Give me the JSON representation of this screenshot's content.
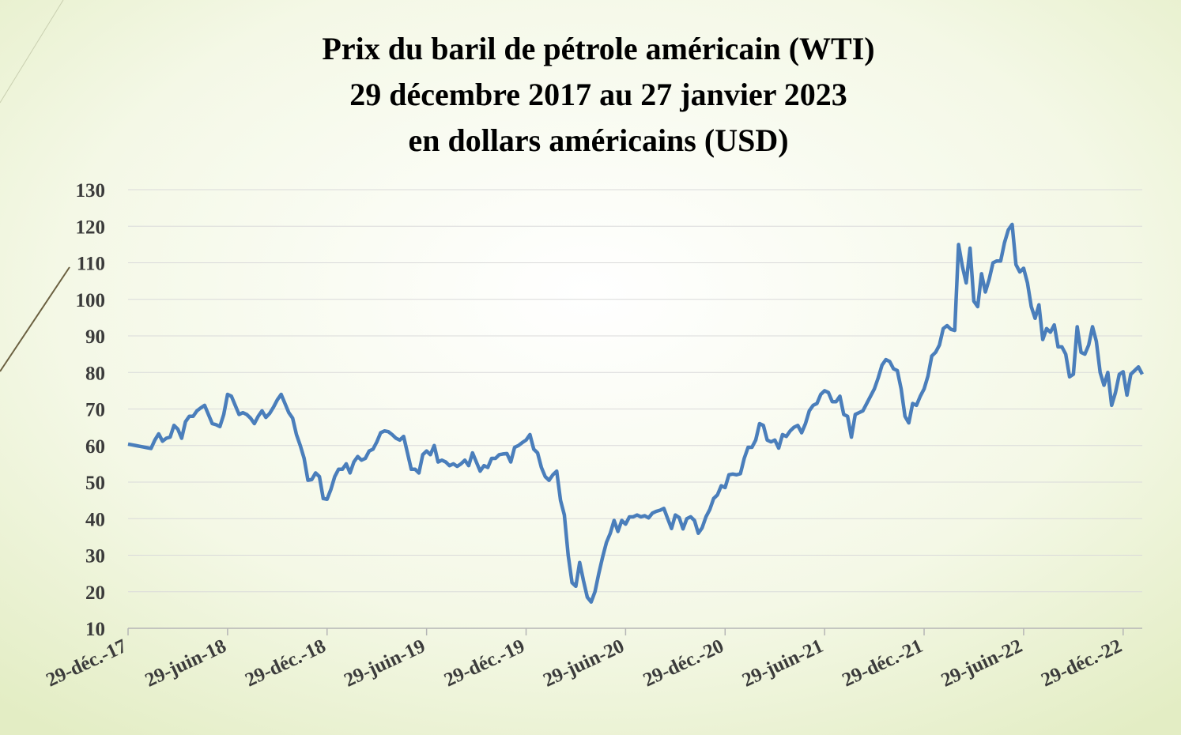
{
  "chart_data": {
    "type": "line",
    "title_lines": [
      "Prix du baril de pétrole américain (WTI)",
      "29 décembre 2017 au 27 janvier 2023",
      "en dollars américains (USD)"
    ],
    "categories": [
      "29-déc.-17",
      null,
      null,
      null,
      null,
      null,
      null,
      null,
      null,
      null,
      null,
      null,
      null,
      null,
      null,
      null,
      null,
      null,
      null,
      null,
      null,
      null,
      null,
      null,
      null,
      null,
      "29-juin-18",
      null,
      null,
      null,
      null,
      null,
      null,
      null,
      null,
      null,
      null,
      null,
      null,
      null,
      null,
      null,
      null,
      null,
      null,
      null,
      null,
      null,
      null,
      null,
      null,
      null,
      "29-déc.-18",
      null,
      null,
      null,
      null,
      null,
      null,
      null,
      null,
      null,
      null,
      null,
      null,
      null,
      null,
      null,
      null,
      null,
      null,
      null,
      null,
      null,
      null,
      null,
      null,
      null,
      "29-juin-19",
      null,
      null,
      null,
      null,
      null,
      null,
      null,
      null,
      null,
      null,
      null,
      null,
      null,
      null,
      null,
      null,
      null,
      null,
      null,
      null,
      null,
      null,
      null,
      null,
      null,
      "29-déc.-19",
      null,
      null,
      null,
      null,
      null,
      null,
      null,
      null,
      null,
      null,
      null,
      null,
      null,
      null,
      null,
      null,
      null,
      null,
      null,
      null,
      null,
      null,
      null,
      null,
      null,
      "29-juin-20",
      null,
      null,
      null,
      null,
      null,
      null,
      null,
      null,
      null,
      null,
      null,
      null,
      null,
      null,
      null,
      null,
      null,
      null,
      null,
      null,
      null,
      null,
      null,
      null,
      null,
      "29-déc.-20",
      null,
      null,
      null,
      null,
      null,
      null,
      null,
      null,
      null,
      null,
      null,
      null,
      null,
      null,
      null,
      null,
      null,
      null,
      null,
      null,
      null,
      null,
      null,
      null,
      null,
      "29-juin-21",
      null,
      null,
      null,
      null,
      null,
      null,
      null,
      null,
      null,
      null,
      null,
      null,
      null,
      null,
      null,
      null,
      null,
      null,
      null,
      null,
      null,
      null,
      null,
      null,
      null,
      "29-déc.-21",
      null,
      null,
      null,
      null,
      null,
      null,
      null,
      null,
      null,
      null,
      null,
      null,
      null,
      null,
      null,
      null,
      null,
      null,
      null,
      null,
      null,
      null,
      null,
      null,
      null,
      "29-juin-22",
      null,
      null,
      null,
      null,
      null,
      null,
      null,
      null,
      null,
      null,
      null,
      null,
      null,
      null,
      null,
      null,
      null,
      null,
      null,
      null,
      null,
      null,
      null,
      null,
      null,
      "29-déc.-22",
      null,
      null,
      null,
      null,
      null
    ],
    "series": [
      {
        "name": "WTI",
        "color": "#4a7ebb",
        "values": [
          60.4,
          60.2,
          60.0,
          59.8,
          59.6,
          59.4,
          59.2,
          61.5,
          63.2,
          61.2,
          62.0,
          62.3,
          65.5,
          64.5,
          62.0,
          66.5,
          68.0,
          68.0,
          69.5,
          70.3,
          71.0,
          68.5,
          66.0,
          65.7,
          65.2,
          68.5,
          74.0,
          73.5,
          71.0,
          68.5,
          69.0,
          68.5,
          67.5,
          66.0,
          68.0,
          69.5,
          67.7,
          68.8,
          70.5,
          72.5,
          74.0,
          71.5,
          69.0,
          67.5,
          63.0,
          60.0,
          56.5,
          50.5,
          50.7,
          52.5,
          51.5,
          45.5,
          45.3,
          48,
          51.5,
          53.5,
          53.5,
          55,
          52.5,
          55.5,
          57,
          56,
          56.5,
          58.5,
          59,
          61,
          63.5,
          64,
          63.8,
          63,
          62,
          61.5,
          62.5,
          58,
          53.5,
          53.5,
          52.5,
          57.5,
          58.5,
          57.5,
          60,
          55.5,
          56,
          55.5,
          54.5,
          55,
          54.3,
          55,
          56,
          54.5,
          58,
          55.5,
          53,
          54.5,
          54,
          56.5,
          56.5,
          57.5,
          57.7,
          57.8,
          55.5,
          59.5,
          60,
          60.8,
          61.5,
          63,
          59,
          58,
          54,
          51.5,
          50.5,
          52,
          53,
          45,
          41,
          30,
          22.5,
          21.5,
          28,
          23,
          18.5,
          17.2,
          20,
          25,
          29.5,
          33.5,
          36,
          39.5,
          36.5,
          39.5,
          38.5,
          40.5,
          40.5,
          41,
          40.5,
          40.8,
          40.2,
          41.5,
          42,
          42.3,
          42.8,
          40,
          37.3,
          41,
          40.3,
          37.2,
          40,
          40.5,
          39.5,
          36,
          37.5,
          40.5,
          42.5,
          45.5,
          46.5,
          49,
          48.5,
          52,
          52.2,
          52,
          52.3,
          56.5,
          59.5,
          59.5,
          61.5,
          66,
          65.5,
          61.5,
          61,
          61.5,
          59.3,
          63,
          62.5,
          64,
          65,
          65.5,
          63.5,
          66,
          69.5,
          71,
          71.5,
          74,
          75,
          74.5,
          72,
          72,
          73.5,
          68.5,
          68,
          62.3,
          68.5,
          69,
          69.5,
          71.5,
          73.5,
          75.5,
          78.5,
          82,
          83.5,
          83,
          81,
          80.5,
          75.5,
          68,
          66.2,
          71.5,
          71,
          73.5,
          75.5,
          79,
          84.5,
          85.5,
          87.5,
          92,
          92.8,
          91.8,
          91.5,
          115,
          109,
          104.5,
          114,
          99.5,
          98,
          107,
          102,
          105.5,
          110,
          110.5,
          110.5,
          115.5,
          119,
          120.5,
          109.5,
          107.5,
          108.5,
          104.5,
          98,
          94.8,
          98.5,
          89,
          92,
          91,
          93,
          87,
          87,
          85,
          78.8,
          79.5,
          92.5,
          85.5,
          85,
          87.5,
          92.5,
          88.5,
          80,
          76.5,
          80,
          71,
          74.5,
          79.5,
          80.2,
          73.8,
          79.5,
          80.5,
          81.5,
          79.5
        ]
      }
    ],
    "ylim": [
      10,
      130
    ],
    "yticks": [
      10,
      20,
      30,
      40,
      50,
      60,
      70,
      80,
      90,
      100,
      110,
      120,
      130
    ],
    "grid": true
  }
}
